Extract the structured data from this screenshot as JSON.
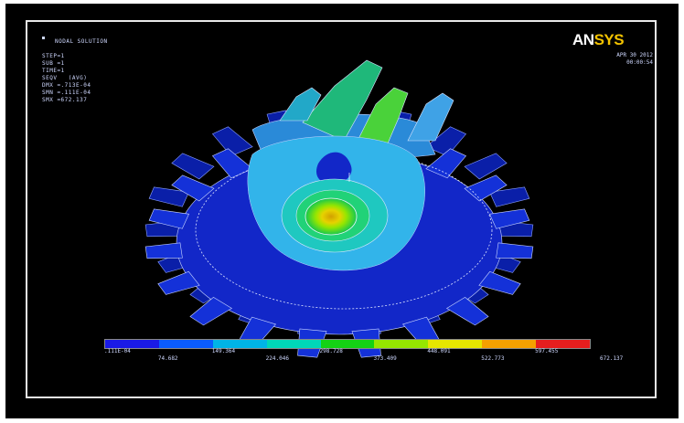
{
  "window": {
    "title": "ANSYS contour plot - spur gear"
  },
  "info": {
    "title": "NODAL SOLUTION",
    "lines": [
      "STEP=1",
      "SUB =1",
      "TIME=1",
      "SEQV   (AVG)",
      "DMX =.713E-04",
      "SMN =.111E-04",
      "SMX =672.137"
    ]
  },
  "logo": {
    "prefix": "AN",
    "accent": "SYS"
  },
  "meta": {
    "date": "APR 30 2012",
    "time": "00:00:54"
  },
  "legend": {
    "colors": [
      "#1a1ae6",
      "#0a5cff",
      "#00b4e6",
      "#00d7b8",
      "#14d214",
      "#96e600",
      "#e6e600",
      "#f5a000",
      "#e61e1e"
    ],
    "labels_bottom": [
      ".111E-04",
      "149.364",
      "298.728",
      "448.091",
      "597.455"
    ],
    "labels_top": [
      "74.682",
      "224.046",
      "373.409",
      "522.773",
      "672.137"
    ]
  },
  "colors": {
    "background": "#000000",
    "border": "#e8e8e8",
    "logo_accent": "#f2c200"
  }
}
